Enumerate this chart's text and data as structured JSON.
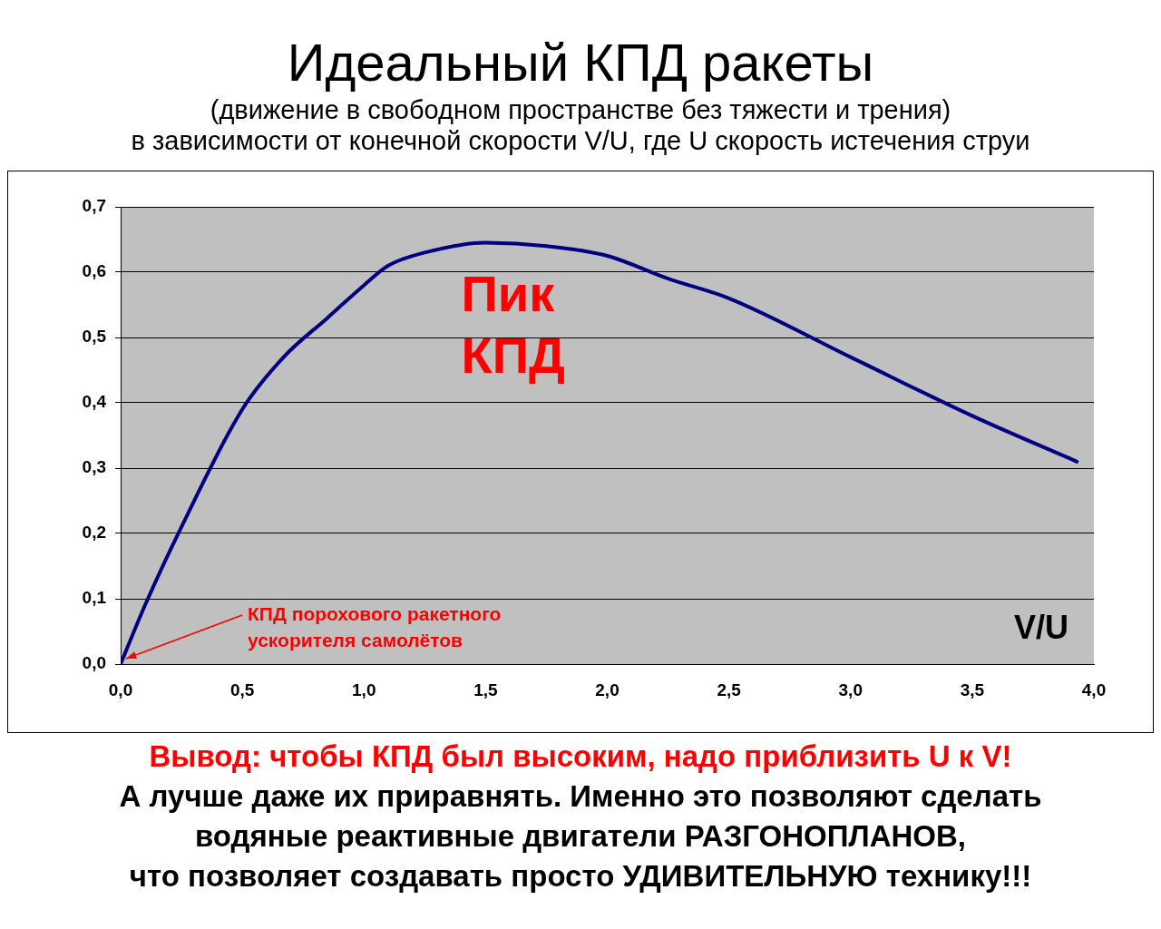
{
  "chart_data": {
    "type": "line",
    "title": "Идеальный КПД ракеты",
    "subtitle": "(движение в свободном пространстве  без тяжести и трения)\nв зависимости от конечной скорости V/U, где U скорость истечения струи",
    "xlabel": "V/U",
    "x": [
      0,
      0.1,
      0.25,
      0.5,
      0.67,
      0.85,
      1.0,
      1.1,
      1.25,
      1.5,
      1.75,
      2.0,
      2.25,
      2.5,
      3.0,
      3.5,
      3.93
    ],
    "series": [
      {
        "color": "#000080",
        "values": [
          0,
          0.09,
          0.21,
          0.39,
          0.47,
          0.53,
          0.58,
          0.61,
          0.63,
          0.645,
          0.64,
          0.625,
          0.59,
          0.56,
          0.47,
          0.38,
          0.31
        ]
      }
    ],
    "xlim": [
      0,
      4
    ],
    "xticks": [
      {
        "value": 0,
        "label": "0,0"
      },
      {
        "value": 0.5,
        "label": "0,5"
      },
      {
        "value": 1,
        "label": "1,0"
      },
      {
        "value": 1.5,
        "label": "1,5"
      },
      {
        "value": 2,
        "label": "2,0"
      },
      {
        "value": 2.5,
        "label": "2,5"
      },
      {
        "value": 3,
        "label": "3,0"
      },
      {
        "value": 3.5,
        "label": "3,5"
      },
      {
        "value": 4,
        "label": "4,0"
      }
    ],
    "ylim": [
      0,
      0.7
    ],
    "yticks": [
      {
        "value": 0,
        "label": "0,0"
      },
      {
        "value": 0.1,
        "label": "0,1"
      },
      {
        "value": 0.2,
        "label": "0,2"
      },
      {
        "value": 0.3,
        "label": "0,3"
      },
      {
        "value": 0.4,
        "label": "0,4"
      },
      {
        "value": 0.5,
        "label": "0,5"
      },
      {
        "value": 0.6,
        "label": "0,6"
      },
      {
        "value": 0.7,
        "label": "0,7"
      }
    ],
    "grid": "y",
    "legend": false,
    "marker": "none",
    "line_style": "solid",
    "annotations": [
      "Пик\nКПД",
      {
        "text": "КПД порохового ракетного\nускорителя самолётов",
        "x": 0,
        "y": 0
      },
      "Вывод: чтобы КПД был высоким, надо приблизить U к V!",
      "А лучше даже их приравнять. Именно это позволяют сделать",
      "водяные реактивные двигатели РАЗГОНОПЛАНОВ,",
      "что позволяет создавать просто УДИВИТЕЛЬНУЮ технику!!!"
    ]
  }
}
